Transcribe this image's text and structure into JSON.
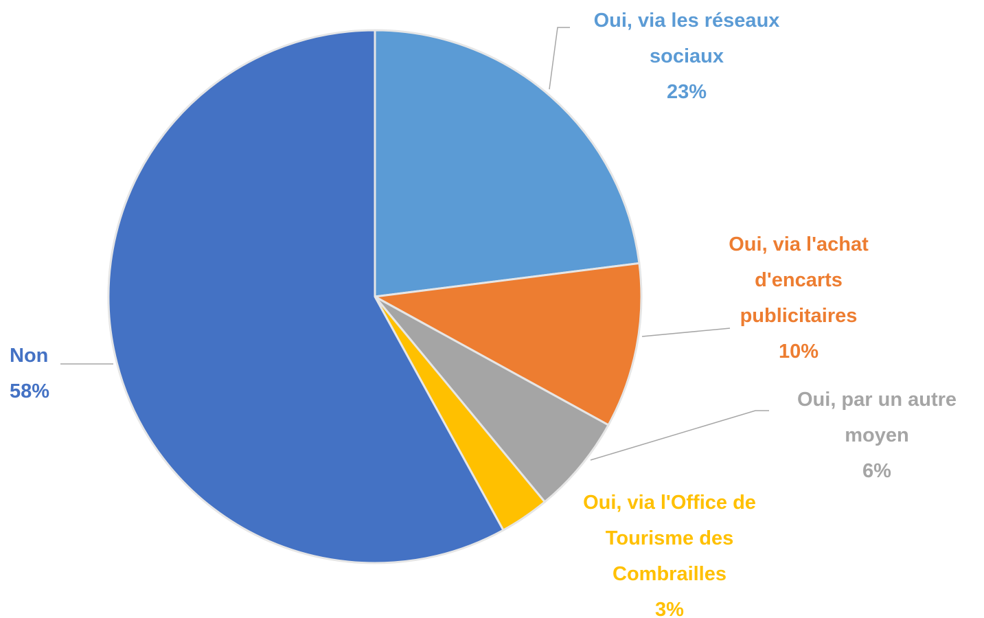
{
  "chart_data": {
    "type": "pie",
    "categories": [
      "Oui, via les réseaux sociaux",
      "Oui, via l'achat d'encarts publicitaires",
      "Oui, par un autre moyen",
      "Oui, via l'Office de Tourisme des Combrailles",
      "Non"
    ],
    "values": [
      23,
      10,
      6,
      3,
      58
    ],
    "value_labels": [
      "23%",
      "10%",
      "6%",
      "3%",
      "58%"
    ],
    "colors": [
      "#5b9bd5",
      "#ed7d31",
      "#a5a5a5",
      "#ffc000",
      "#4472c4"
    ]
  }
}
